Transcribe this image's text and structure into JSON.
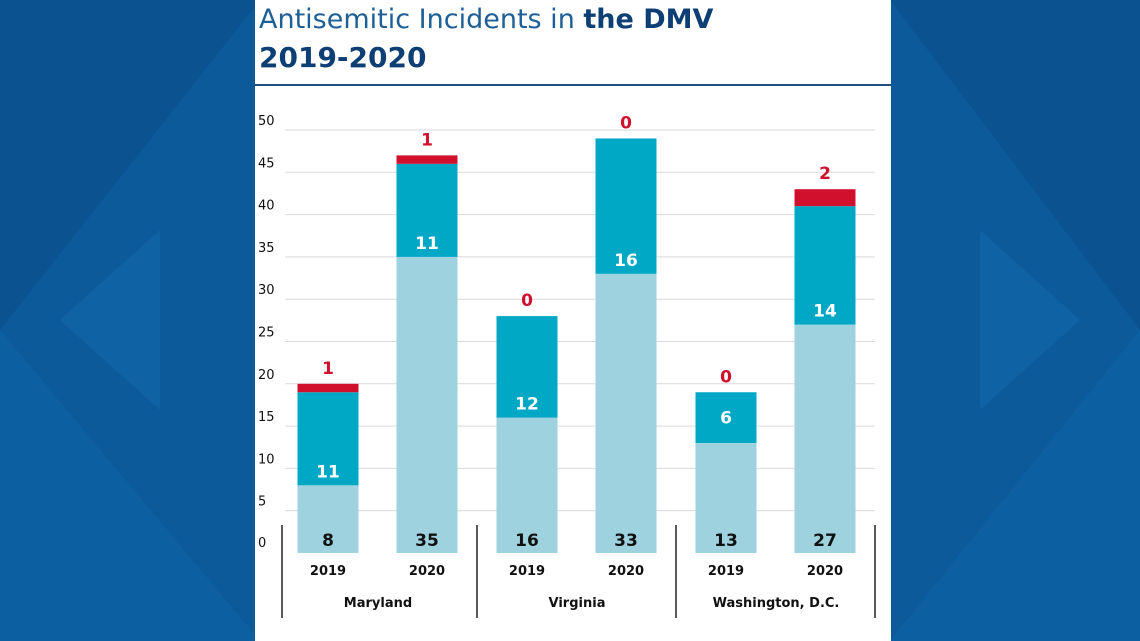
{
  "colors": {
    "base": "#9fd2df",
    "mid": "#00a8c6",
    "top": "#d0102c",
    "grid": "#d9d9d9",
    "text_dark": "#111111",
    "label_white": "#ffffff",
    "label_red": "#d0102c",
    "title_light": "#1f5f97",
    "title_bold": "#0d3f74"
  },
  "title": {
    "part1": "Antisemitic Incidents in ",
    "part2": "the DMV",
    "line2": "2019-2020"
  },
  "chart_data": {
    "type": "bar",
    "stacked": true,
    "ylim": [
      0,
      50
    ],
    "yticks": [
      0,
      5,
      10,
      15,
      20,
      25,
      30,
      35,
      40,
      45,
      50
    ],
    "grid": true,
    "groups": [
      "Maryland",
      "Virginia",
      "Washington, D.C."
    ],
    "categories": [
      "2019",
      "2020",
      "2019",
      "2020",
      "2019",
      "2020"
    ],
    "category_group": [
      0,
      0,
      1,
      1,
      2,
      2
    ],
    "series": [
      {
        "values": [
          8,
          35,
          16,
          33,
          13,
          27
        ]
      },
      {
        "values": [
          11,
          11,
          12,
          16,
          6,
          14
        ]
      },
      {
        "values": [
          1,
          1,
          0,
          0,
          0,
          2
        ]
      }
    ]
  }
}
